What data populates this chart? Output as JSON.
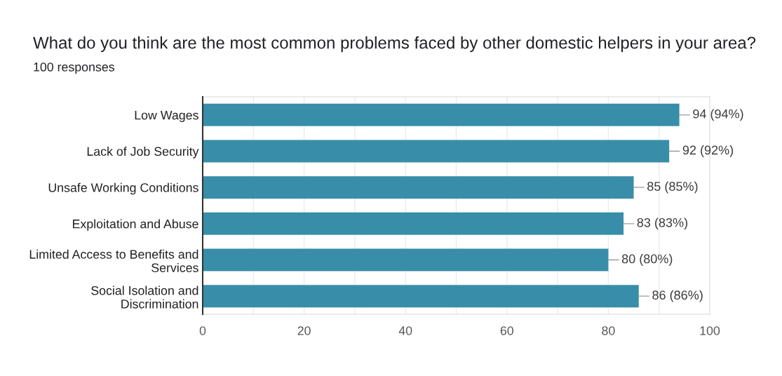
{
  "chart_data": {
    "type": "bar",
    "orientation": "horizontal",
    "title": "What do you think are the most common problems faced by other domestic helpers in your area?",
    "subtitle": "100 responses",
    "categories": [
      "Low Wages",
      "Lack of Job Security",
      "Unsafe Working Conditions",
      "Exploitation and Abuse",
      "Limited Access to Benefits and\nServices",
      "Social Isolation and\nDiscrimination"
    ],
    "values": [
      94,
      92,
      85,
      83,
      80,
      86
    ],
    "value_labels": [
      "94 (94%)",
      "92 (92%)",
      "85 (85%)",
      "83 (83%)",
      "80 (80%)",
      "86 (86%)"
    ],
    "color": "#388ea8",
    "xlim": [
      0,
      100
    ],
    "xticks": [
      0,
      {
        "value": 10,
        "label": null
      },
      20,
      {
        "value": 30,
        "label": null
      },
      40,
      {
        "value": 50,
        "label": null
      },
      60,
      {
        "value": 70,
        "label": null
      },
      80,
      {
        "value": 90,
        "label": null
      },
      100
    ],
    "grid": "x"
  }
}
